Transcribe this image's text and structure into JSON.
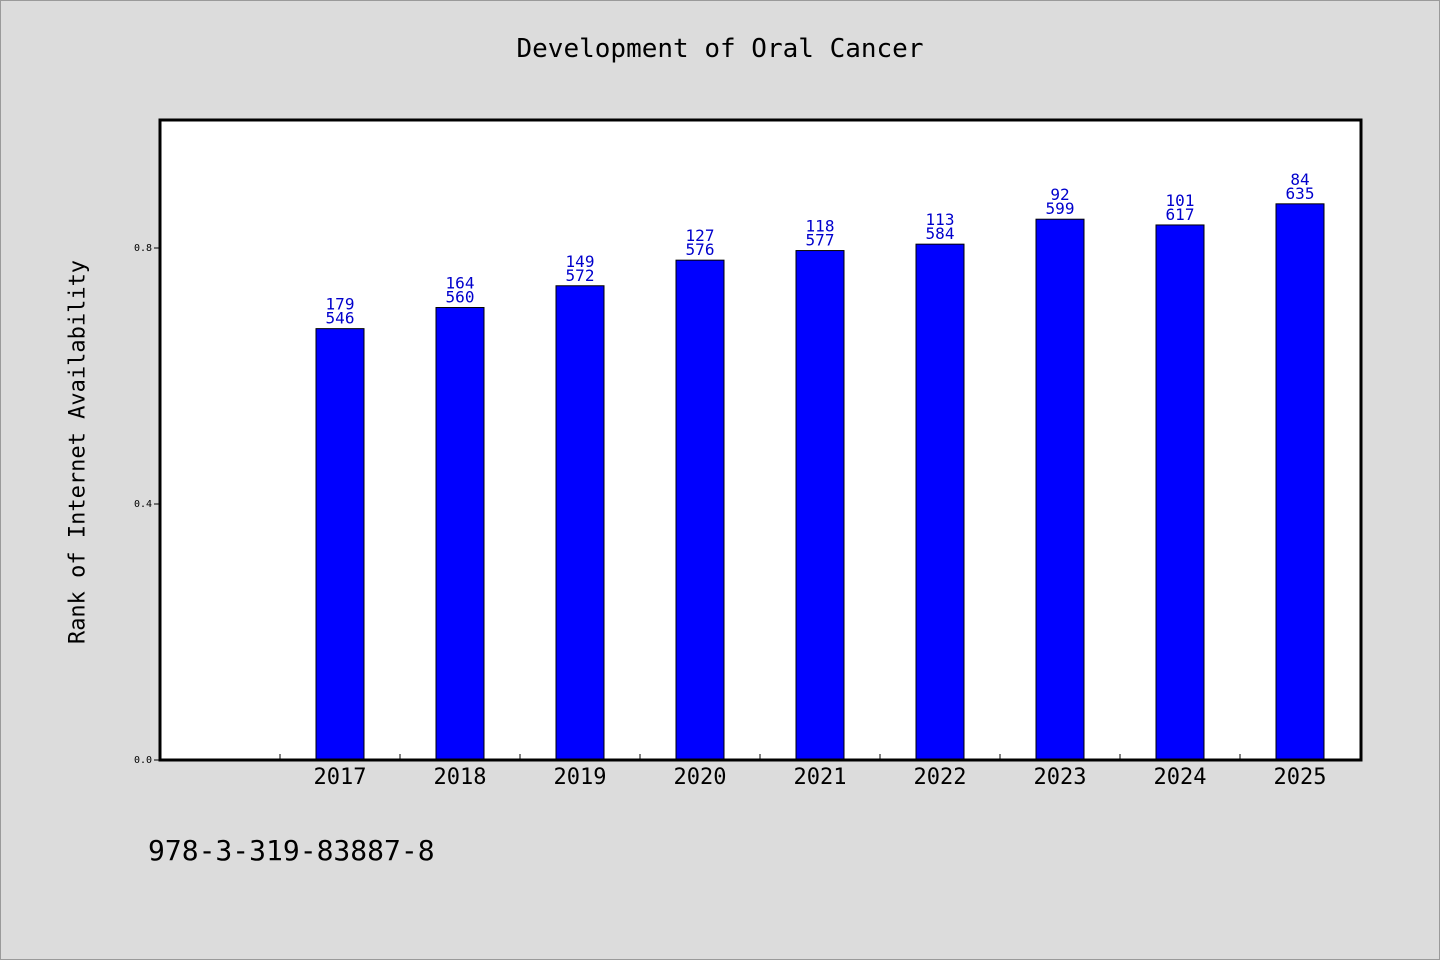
{
  "chart_data": {
    "type": "bar",
    "title": "Development of Oral Cancer",
    "xlabel": "",
    "ylabel": "Rank of Internet Availability",
    "categories": [
      "2017",
      "2018",
      "2019",
      "2020",
      "2021",
      "2022",
      "2023",
      "2024",
      "2025"
    ],
    "values": [
      0.674,
      0.707,
      0.741,
      0.781,
      0.796,
      0.806,
      0.845,
      0.836,
      0.869
    ],
    "annotations_top": [
      "179",
      "164",
      "149",
      "127",
      "118",
      "113",
      "92",
      "101",
      "84"
    ],
    "annotations_bottom": [
      "546",
      "560",
      "572",
      "576",
      "577",
      "584",
      "599",
      "617",
      "635"
    ],
    "yticks": [
      "0.0",
      "0.4",
      "0.8"
    ],
    "ylim": [
      0,
      1.0
    ],
    "grid": false,
    "colors": {
      "bar": "#0000ff",
      "label": "#0000cc",
      "background": "#dcdcdc",
      "plot": "#ffffff"
    }
  },
  "footer": {
    "code": "978-3-319-83887-8"
  }
}
